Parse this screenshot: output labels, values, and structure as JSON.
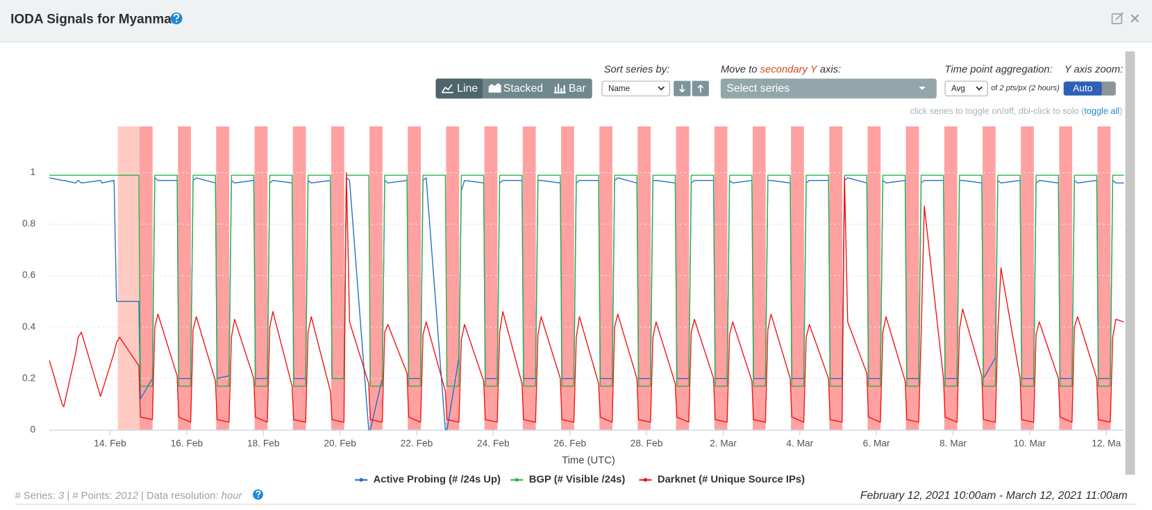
{
  "header": {
    "title": "IODA Signals for Myanmar"
  },
  "controls": {
    "chart_types": [
      "Line",
      "Stacked",
      "Bar"
    ],
    "sort_label": "Sort series by:",
    "sort_value": "Name",
    "secondary_label": [
      "Move to",
      "secondary Y",
      "axis:"
    ],
    "secondary_placeholder": "Select series",
    "aggregation_label": "Time point aggregation:",
    "aggregation_value": "Avg",
    "aggregation_note": [
      "of",
      "2 pts/px",
      "(2 hours)"
    ],
    "zoom_label": "Y axis zoom:",
    "zoom_value": "Auto",
    "hint": [
      "click series to toggle on/off, dbl-click to solo (",
      "toggle all",
      ")"
    ]
  },
  "chart_data": {
    "type": "line",
    "xlabel": "Time (UTC)",
    "xlim": [
      0.417,
      28.458
    ],
    "ylim": [
      0,
      1.18
    ],
    "grid": true,
    "xticks": [
      {
        "value": 2,
        "label": "14. Feb"
      },
      {
        "value": 4,
        "label": "16. Feb"
      },
      {
        "value": 6,
        "label": "18. Feb"
      },
      {
        "value": 8,
        "label": "20. Feb"
      },
      {
        "value": 10,
        "label": "22. Feb"
      },
      {
        "value": 12,
        "label": "24. Feb"
      },
      {
        "value": 14,
        "label": "26. Feb"
      },
      {
        "value": 16,
        "label": "28. Feb"
      },
      {
        "value": 18,
        "label": "2. Mar"
      },
      {
        "value": 20,
        "label": "4. Mar"
      },
      {
        "value": 22,
        "label": "6. Mar"
      },
      {
        "value": 24,
        "label": "8. Mar"
      },
      {
        "value": 26,
        "label": "10. Mar"
      },
      {
        "value": 28,
        "label": "12. Ma"
      }
    ],
    "yticks": [
      0,
      0.2,
      0.4,
      0.6,
      0.8,
      1
    ],
    "shaded_color": "#ff8a8a",
    "shaded_ranges": [
      [
        2.77,
        3.11
      ],
      [
        3.77,
        4.11
      ],
      [
        4.77,
        5.11
      ],
      [
        5.77,
        6.11
      ],
      [
        6.77,
        7.11
      ],
      [
        7.77,
        8.11
      ],
      [
        8.77,
        9.11
      ],
      [
        9.77,
        10.11
      ],
      [
        10.77,
        11.11
      ],
      [
        11.77,
        12.11
      ],
      [
        12.77,
        13.11
      ],
      [
        13.77,
        14.11
      ],
      [
        14.77,
        15.11
      ],
      [
        15.77,
        16.11
      ],
      [
        16.77,
        17.11
      ],
      [
        17.77,
        18.11
      ],
      [
        18.77,
        19.11
      ],
      [
        19.77,
        20.11
      ],
      [
        20.77,
        21.11
      ],
      [
        21.77,
        22.11
      ],
      [
        22.77,
        23.11
      ],
      [
        23.77,
        24.11
      ],
      [
        24.77,
        25.11
      ],
      [
        25.77,
        26.11
      ],
      [
        26.77,
        27.11
      ],
      [
        27.77,
        28.11
      ]
    ],
    "light_shaded_color": "#ffc4bb",
    "light_shaded_ranges": [
      [
        2.2,
        2.77
      ]
    ],
    "x": [
      0.417,
      0.75,
      0.792,
      1.104,
      1.167,
      1.25,
      1.75,
      1.792,
      2.104,
      2.167,
      2.25,
      2.75,
      2.792,
      3.104,
      3.167,
      3.25,
      3.75,
      3.792,
      4.104,
      4.167,
      4.25,
      4.75,
      4.792,
      5.104,
      5.167,
      5.25,
      5.75,
      5.792,
      6.104,
      6.167,
      6.25,
      6.75,
      6.792,
      7.104,
      7.167,
      7.25,
      7.75,
      7.792,
      8.104,
      8.167,
      8.25,
      8.75,
      8.792,
      9.104,
      9.167,
      9.25,
      9.75,
      9.792,
      10.104,
      10.167,
      10.25,
      10.75,
      10.792,
      11.104,
      11.167,
      11.25,
      11.75,
      11.792,
      12.104,
      12.167,
      12.25,
      12.75,
      12.792,
      13.104,
      13.167,
      13.25,
      13.75,
      13.792,
      14.104,
      14.167,
      14.25,
      14.75,
      14.792,
      15.104,
      15.167,
      15.25,
      15.75,
      15.792,
      16.104,
      16.167,
      16.25,
      16.75,
      16.792,
      17.104,
      17.167,
      17.25,
      17.75,
      17.792,
      18.104,
      18.167,
      18.25,
      18.75,
      18.792,
      19.104,
      19.167,
      19.25,
      19.75,
      19.792,
      20.104,
      20.167,
      20.25,
      20.75,
      20.792,
      21.104,
      21.167,
      21.25,
      21.75,
      21.792,
      22.104,
      22.167,
      22.25,
      22.75,
      22.792,
      23.104,
      23.167,
      23.25,
      23.75,
      23.792,
      24.104,
      24.167,
      24.25,
      24.75,
      24.792,
      25.104,
      25.167,
      25.25,
      25.75,
      25.792,
      26.104,
      26.167,
      26.25,
      26.75,
      26.792,
      27.104,
      27.167,
      27.25,
      27.75,
      27.792,
      28.104,
      28.167,
      28.25,
      28.458
    ],
    "series": [
      {
        "name": "Active Probing (# /24s Up)",
        "color": "#1f6fc5",
        "values": [
          0.98,
          0.97,
          0.97,
          0.96,
          0.97,
          0.96,
          0.97,
          0.96,
          0.97,
          0.5,
          0.5,
          0.5,
          0.12,
          0.2,
          0.98,
          0.97,
          0.97,
          0.2,
          0.2,
          0.97,
          0.98,
          0.96,
          0.2,
          0.21,
          0.97,
          0.96,
          0.97,
          0.2,
          0.2,
          0.96,
          0.97,
          0.96,
          0.2,
          0.2,
          0.97,
          0.96,
          0.97,
          0.2,
          0.2,
          0.98,
          0.97,
          0.0,
          0.0,
          0.2,
          0.97,
          0.96,
          0.97,
          0.2,
          0.2,
          0.97,
          0.98,
          0.0,
          0.0,
          0.28,
          0.93,
          0.97,
          0.96,
          0.2,
          0.2,
          0.96,
          0.97,
          0.97,
          0.2,
          0.2,
          0.97,
          0.97,
          0.96,
          0.2,
          0.2,
          0.96,
          0.97,
          0.97,
          0.2,
          0.2,
          0.97,
          0.98,
          0.96,
          0.2,
          0.2,
          0.97,
          0.97,
          0.96,
          0.2,
          0.2,
          0.96,
          0.97,
          0.97,
          0.2,
          0.2,
          0.97,
          0.96,
          0.97,
          0.2,
          0.2,
          0.97,
          0.97,
          0.96,
          0.2,
          0.2,
          0.96,
          0.97,
          0.97,
          0.2,
          0.2,
          0.97,
          0.98,
          0.96,
          0.2,
          0.2,
          0.97,
          0.96,
          0.97,
          0.2,
          0.2,
          0.96,
          0.97,
          0.97,
          0.2,
          0.2,
          0.97,
          0.97,
          0.96,
          0.2,
          0.28,
          0.97,
          0.96,
          0.97,
          0.2,
          0.2,
          0.96,
          0.97,
          0.96,
          0.2,
          0.2,
          0.97,
          0.96,
          0.97,
          0.2,
          0.2,
          0.97,
          0.96,
          0.96
        ]
      },
      {
        "name": "BGP (# Visible /24s)",
        "color": "#2bb24c",
        "values": [
          0.99,
          0.99,
          0.99,
          0.99,
          0.99,
          0.99,
          0.99,
          0.99,
          0.99,
          0.99,
          0.99,
          0.99,
          0.17,
          0.17,
          0.99,
          0.99,
          0.99,
          0.17,
          0.17,
          0.99,
          0.99,
          0.99,
          0.17,
          0.17,
          0.99,
          0.99,
          0.99,
          0.17,
          0.17,
          0.99,
          0.99,
          0.99,
          0.17,
          0.17,
          0.99,
          0.99,
          0.99,
          0.2,
          0.2,
          0.99,
          0.99,
          0.99,
          0.17,
          0.17,
          0.99,
          0.99,
          0.99,
          0.17,
          0.17,
          0.99,
          0.99,
          0.99,
          0.17,
          0.17,
          0.99,
          0.99,
          0.99,
          0.17,
          0.17,
          0.99,
          0.99,
          0.99,
          0.17,
          0.17,
          0.99,
          0.99,
          0.99,
          0.17,
          0.17,
          0.99,
          0.99,
          0.99,
          0.17,
          0.17,
          0.99,
          0.99,
          0.99,
          0.17,
          0.17,
          0.99,
          0.99,
          0.99,
          0.17,
          0.17,
          0.99,
          0.99,
          0.99,
          0.17,
          0.17,
          0.99,
          0.99,
          0.99,
          0.17,
          0.17,
          0.99,
          0.99,
          0.99,
          0.17,
          0.17,
          0.99,
          0.99,
          0.99,
          0.17,
          0.17,
          0.99,
          0.99,
          0.99,
          0.17,
          0.17,
          0.99,
          0.99,
          0.99,
          0.17,
          0.17,
          0.99,
          0.99,
          0.99,
          0.17,
          0.17,
          0.99,
          0.99,
          0.99,
          0.17,
          0.17,
          0.99,
          0.99,
          0.99,
          0.17,
          0.17,
          0.99,
          0.99,
          0.99,
          0.17,
          0.17,
          0.99,
          0.99,
          0.99,
          0.17,
          0.17,
          0.99,
          0.99,
          0.99
        ]
      },
      {
        "name": "Darknet (# Unique Source IPs)",
        "color": "#f01010",
        "values": [
          0.27,
          0.1,
          0.09,
          0.3,
          0.36,
          0.38,
          0.13,
          0.15,
          0.3,
          0.34,
          0.36,
          0.25,
          0.05,
          0.04,
          0.4,
          0.45,
          0.21,
          0.05,
          0.03,
          0.39,
          0.44,
          0.19,
          0.04,
          0.03,
          0.36,
          0.43,
          0.2,
          0.05,
          0.03,
          0.4,
          0.46,
          0.17,
          0.04,
          0.03,
          0.38,
          0.44,
          0.15,
          0.04,
          0.03,
          1.0,
          0.42,
          0.18,
          0.04,
          0.03,
          0.38,
          0.41,
          0.22,
          0.05,
          0.03,
          0.37,
          0.42,
          0.15,
          0.04,
          0.03,
          0.35,
          0.41,
          0.19,
          0.04,
          0.03,
          0.38,
          0.46,
          0.18,
          0.04,
          0.03,
          0.37,
          0.44,
          0.2,
          0.04,
          0.03,
          0.36,
          0.44,
          0.18,
          0.05,
          0.03,
          0.4,
          0.45,
          0.2,
          0.04,
          0.03,
          0.36,
          0.42,
          0.18,
          0.05,
          0.03,
          0.38,
          0.43,
          0.2,
          0.04,
          0.03,
          0.37,
          0.42,
          0.19,
          0.04,
          0.03,
          0.39,
          0.45,
          0.2,
          0.05,
          0.03,
          0.36,
          0.41,
          0.2,
          0.04,
          0.03,
          0.98,
          0.42,
          0.22,
          0.05,
          0.03,
          0.38,
          0.44,
          0.19,
          0.04,
          0.03,
          0.37,
          0.87,
          0.2,
          0.05,
          0.03,
          0.39,
          0.47,
          0.21,
          0.04,
          0.03,
          0.38,
          0.63,
          0.2,
          0.04,
          0.03,
          0.37,
          0.42,
          0.2,
          0.05,
          0.03,
          0.4,
          0.44,
          0.2,
          0.04,
          0.03,
          0.36,
          0.43,
          0.42
        ]
      }
    ]
  },
  "footer": {
    "series_label": "# Series:",
    "series_count": 3,
    "points_label": "| # Points:",
    "points_count": 2012,
    "resolution_label": "| Data resolution:",
    "resolution": "hour",
    "range": "February 12, 2021 10:00am - March 12, 2021 11:00am"
  }
}
